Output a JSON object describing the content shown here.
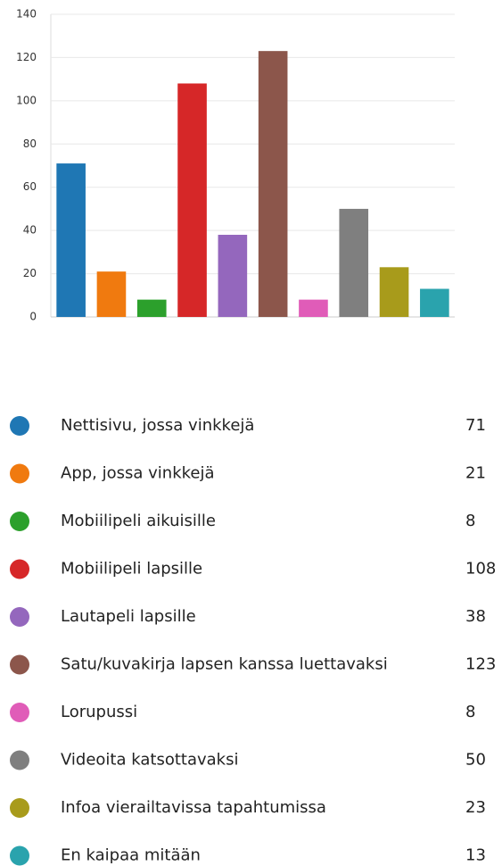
{
  "chart_data": {
    "type": "bar",
    "categories": [
      "Nettisivu, jossa vinkkejä",
      "App, jossa vinkkejä",
      "Mobiilipeli aikuisille",
      "Mobiilipeli lapsille",
      "Lautapeli lapsille",
      "Satu/kuvakirja lapsen kanssa luettavaksi",
      "Lorupussi",
      "Videoita katsottavaksi",
      "Infoa vierailtavissa tapahtumissa",
      "En kaipaa mitään"
    ],
    "values": [
      71,
      21,
      8,
      108,
      38,
      123,
      8,
      50,
      23,
      13
    ],
    "colors": [
      "#1f77b4",
      "#f07a0f",
      "#2ca02c",
      "#d62728",
      "#9467bd",
      "#8c564b",
      "#e05cb8",
      "#7f7f7f",
      "#a89b1b",
      "#2aa3ad"
    ],
    "ylim": [
      0,
      140
    ],
    "yticks": [
      0,
      20,
      40,
      60,
      80,
      100,
      120,
      140
    ],
    "grid": true
  }
}
